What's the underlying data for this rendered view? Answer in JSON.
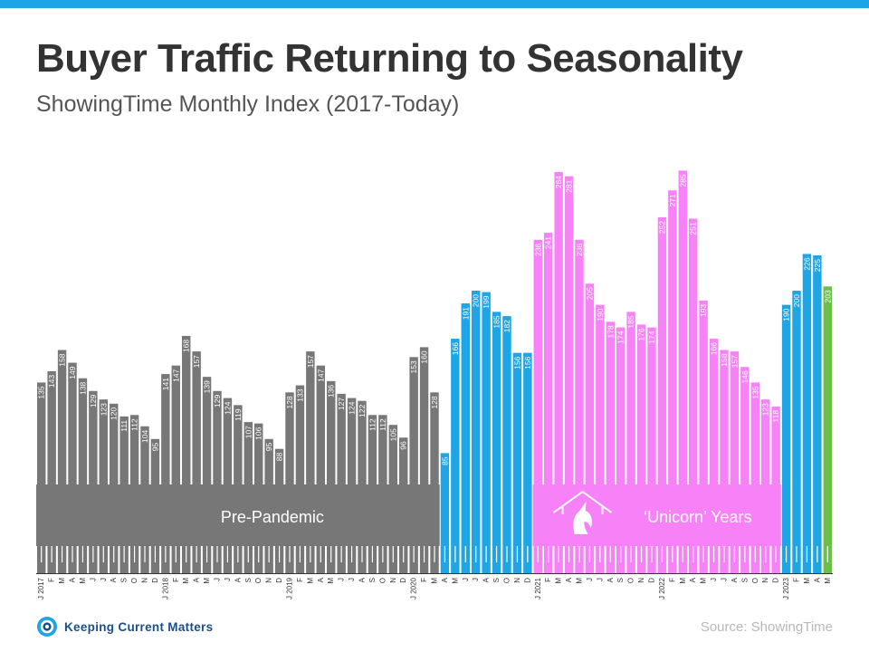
{
  "header": {
    "title": "Buyer Traffic Returning to Seasonality",
    "subtitle": "ShowingTime Monthly Index (2017-Today)"
  },
  "footer": {
    "brand": "Keeping Current Matters",
    "source": "Source: ShowingTime"
  },
  "colors": {
    "accent": "#1ea5e6",
    "pre_pandemic": "#777777",
    "pandemic": "#1ea5e6",
    "unicorn": "#f782f7",
    "latest": "#6cc04a"
  },
  "icons": {
    "unicorn_badge": "unicorn-house-icon",
    "brand": "kcm-logo-icon"
  },
  "chart_data": {
    "type": "bar",
    "ylim": [
      0,
      300
    ],
    "x": [
      "J 2017",
      "F",
      "M",
      "A",
      "M",
      "J",
      "J",
      "A",
      "S",
      "O",
      "N",
      "D",
      "J 2018",
      "F",
      "M",
      "A",
      "M",
      "J",
      "J",
      "A",
      "S",
      "O",
      "N",
      "D",
      "J 2019",
      "F",
      "M",
      "A",
      "M",
      "J",
      "J",
      "A",
      "S",
      "O",
      "N",
      "D",
      "J 2020",
      "F",
      "M",
      "A",
      "M",
      "J",
      "J",
      "A",
      "S",
      "O",
      "N",
      "D",
      "J 2021",
      "F",
      "M",
      "A",
      "M",
      "J",
      "J",
      "A",
      "S",
      "O",
      "N",
      "D",
      "J 2022",
      "F",
      "M",
      "A",
      "M",
      "J",
      "J",
      "A",
      "S",
      "O",
      "N",
      "D",
      "J 2023",
      "F",
      "M",
      "A",
      "M"
    ],
    "values": [
      135,
      143,
      158,
      149,
      138,
      129,
      123,
      120,
      111,
      112,
      104,
      95,
      141,
      147,
      168,
      157,
      139,
      129,
      124,
      119,
      107,
      106,
      95,
      88,
      128,
      133,
      157,
      147,
      136,
      127,
      124,
      122,
      112,
      112,
      105,
      96,
      153,
      160,
      128,
      85,
      166,
      191,
      200,
      199,
      185,
      182,
      156,
      156,
      236,
      241,
      284,
      281,
      236,
      205,
      190,
      178,
      174,
      185,
      176,
      174,
      252,
      271,
      285,
      251,
      193,
      166,
      158,
      157,
      146,
      135,
      123,
      118,
      190,
      200,
      226,
      225,
      203
    ],
    "periods": [
      {
        "label": "Pre-Pandemic",
        "start": 0,
        "end": 38,
        "color": "#777777"
      },
      {
        "label": "",
        "start": 39,
        "end": 47,
        "color": "#1ea5e6"
      },
      {
        "label": "‘Unicorn’ Years",
        "start": 48,
        "end": 71,
        "color": "#f782f7"
      },
      {
        "label": "",
        "start": 72,
        "end": 75,
        "color": "#1ea5e6"
      },
      {
        "label": "",
        "start": 76,
        "end": 76,
        "color": "#6cc04a"
      }
    ]
  }
}
